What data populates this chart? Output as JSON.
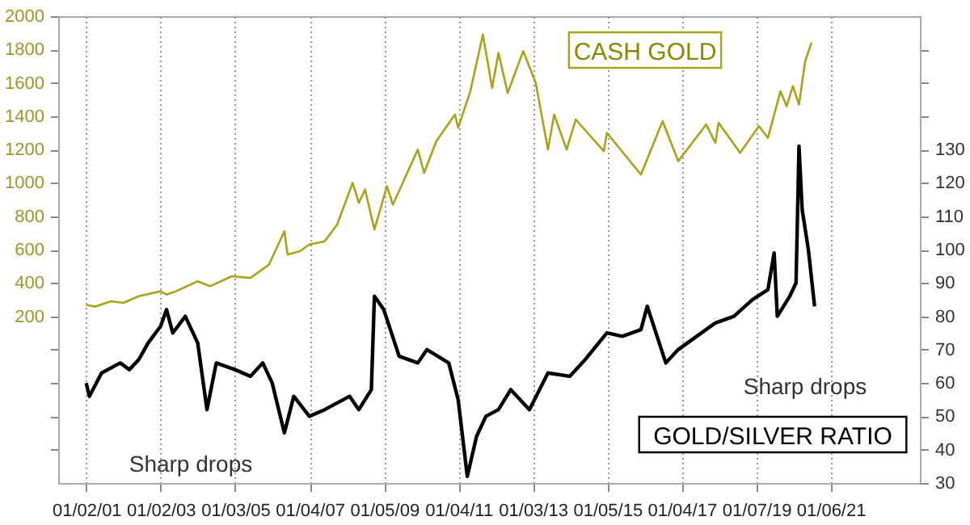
{
  "chart_data": {
    "type": "line",
    "xlim": [
      "2000-04-01",
      "2023-06-01"
    ],
    "xticks": [
      {
        "value": "2001-01-02",
        "label": "01/02/01"
      },
      {
        "value": "2003-01-02",
        "label": "01/02/03"
      },
      {
        "value": "2005-01-03",
        "label": "01/03/05"
      },
      {
        "value": "2007-01-04",
        "label": "01/04/07"
      },
      {
        "value": "2009-01-05",
        "label": "01/05/09"
      },
      {
        "value": "2011-01-04",
        "label": "01/04/11"
      },
      {
        "value": "2013-01-03",
        "label": "01/03/13"
      },
      {
        "value": "2015-01-05",
        "label": "01/05/15"
      },
      {
        "value": "2017-01-04",
        "label": "01/04/17"
      },
      {
        "value": "2019-01-07",
        "label": "01/07/19"
      },
      {
        "value": "2021-01-06",
        "label": "01/06/21"
      }
    ],
    "ylim": [
      -800,
      2000
    ],
    "yticks": [
      {
        "value": -600,
        "label": null
      },
      {
        "value": -400,
        "label": null
      },
      {
        "value": -200,
        "label": null
      },
      {
        "value": 0,
        "label": null
      },
      200,
      400,
      600,
      800,
      1000,
      1200,
      1400,
      1600,
      1800,
      2000
    ],
    "y2lim": [
      30,
      170
    ],
    "y2ticks": [
      30,
      40,
      50,
      60,
      70,
      80,
      90,
      100,
      110,
      120,
      130,
      {
        "value": 140,
        "label": null
      },
      {
        "value": 150,
        "label": null
      },
      {
        "value": 160,
        "label": null
      }
    ],
    "grid": "x",
    "series": [
      {
        "name": "CASH GOLD",
        "color": "#aaa21a",
        "x": [
          "2001-01",
          "2001-04",
          "2001-09",
          "2002-01",
          "2002-06",
          "2003-01",
          "2003-03",
          "2003-06",
          "2004-01",
          "2004-05",
          "2004-12",
          "2005-06",
          "2005-12",
          "2006-05",
          "2006-06",
          "2006-10",
          "2007-01",
          "2007-06",
          "2007-10",
          "2008-03",
          "2008-05",
          "2008-07",
          "2008-10",
          "2009-02",
          "2009-04",
          "2009-12",
          "2010-02",
          "2010-06",
          "2010-12",
          "2011-01",
          "2011-05",
          "2011-09",
          "2011-12",
          "2012-02",
          "2012-05",
          "2012-10",
          "2013-02",
          "2013-06",
          "2013-08",
          "2013-12",
          "2014-03",
          "2014-12",
          "2015-01",
          "2015-12",
          "2016-07",
          "2016-12",
          "2017-09",
          "2017-12",
          "2018-01",
          "2018-08",
          "2019-02",
          "2019-05",
          "2019-09",
          "2019-11",
          "2020-01",
          "2020-03",
          "2020-05",
          "2020-07"
        ],
        "values": [
          268,
          258,
          290,
          280,
          320,
          350,
          330,
          350,
          410,
          380,
          440,
          430,
          510,
          710,
          570,
          590,
          630,
          650,
          750,
          1000,
          880,
          960,
          720,
          980,
          870,
          1200,
          1060,
          1250,
          1410,
          1330,
          1550,
          1890,
          1570,
          1780,
          1540,
          1790,
          1600,
          1200,
          1410,
          1200,
          1380,
          1190,
          1300,
          1050,
          1370,
          1130,
          1350,
          1240,
          1360,
          1180,
          1340,
          1270,
          1550,
          1460,
          1580,
          1470,
          1730,
          1840
        ]
      },
      {
        "name": "GOLD/SILVER RATIO",
        "color": "#000000",
        "axis": "y2",
        "x": [
          "2001-01",
          "2001-02",
          "2001-06",
          "2001-12",
          "2002-03",
          "2002-06",
          "2002-09",
          "2003-01",
          "2003-03",
          "2003-05",
          "2003-09",
          "2004-01",
          "2004-04",
          "2004-07",
          "2005-01",
          "2005-06",
          "2005-10",
          "2006-01",
          "2006-05",
          "2006-08",
          "2007-01",
          "2007-06",
          "2007-10",
          "2008-02",
          "2008-05",
          "2008-09",
          "2008-10",
          "2009-01",
          "2009-06",
          "2009-12",
          "2010-03",
          "2010-10",
          "2011-01",
          "2011-04",
          "2011-07",
          "2011-10",
          "2012-02",
          "2012-06",
          "2012-12",
          "2013-06",
          "2014-01",
          "2014-06",
          "2015-01",
          "2015-06",
          "2015-12",
          "2016-02",
          "2016-08",
          "2016-12",
          "2017-06",
          "2017-12",
          "2018-06",
          "2018-12",
          "2019-05",
          "2019-07",
          "2019-08",
          "2019-12",
          "2020-02",
          "2020-03",
          "2020-04",
          "2020-06",
          "2020-08"
        ],
        "values": [
          60,
          56,
          63,
          66,
          64,
          67,
          72,
          77,
          82,
          75,
          80,
          72,
          52,
          66,
          64,
          62,
          66,
          60,
          45,
          56,
          50,
          52,
          54,
          56,
          52,
          58,
          86,
          82,
          68,
          66,
          70,
          66,
          55,
          32,
          44,
          50,
          52,
          58,
          52,
          63,
          62,
          67,
          75,
          74,
          76,
          83,
          66,
          70,
          74,
          78,
          80,
          85,
          88,
          99,
          80,
          86,
          90,
          131,
          112,
          100,
          83
        ]
      }
    ],
    "annotations": [
      "Sharp drops",
      "Sharp drops"
    ]
  }
}
